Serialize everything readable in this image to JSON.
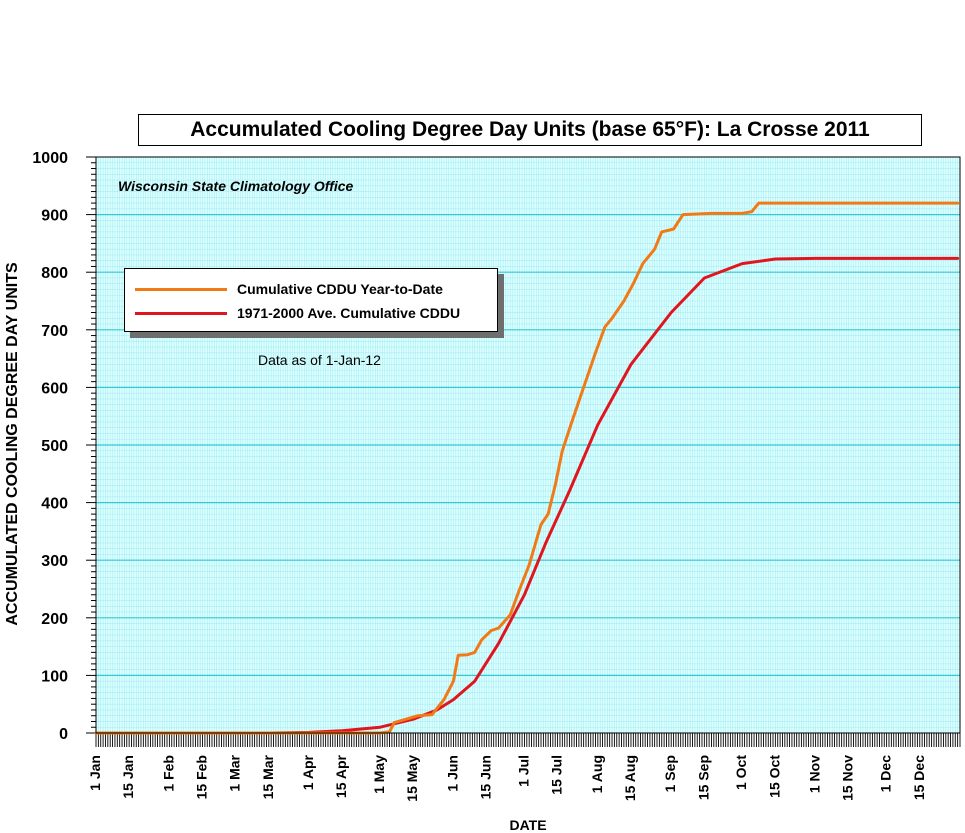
{
  "chart_data": {
    "type": "line",
    "title": "Accumulated Cooling Degree Day Units (base 65°F): La Crosse 2011",
    "xlabel": "DATE",
    "ylabel": "ACCUMULATED COOLING DEGREE DAY UNITS",
    "credit": "Wisconsin State Climatology Office",
    "note": "Data as of 1-Jan-12",
    "ylim": [
      0,
      1000
    ],
    "yticks": [
      0,
      100,
      200,
      300,
      400,
      500,
      600,
      700,
      800,
      900,
      1000
    ],
    "xticks": [
      "1 Jan",
      "15 Jan",
      "1 Feb",
      "15 Feb",
      "1 Mar",
      "15 Mar",
      "1 Apr",
      "15 Apr",
      "1 May",
      "15 May",
      "1 Jun",
      "15 Jun",
      "1 Jul",
      "15 Jul",
      "1 Aug",
      "15 Aug",
      "1 Sep",
      "15 Sep",
      "1 Oct",
      "15 Oct",
      "1 Nov",
      "15 Nov",
      "1 Dec",
      "15 Dec"
    ],
    "grid": true,
    "legend_position": "upper-left",
    "plot_background": "#dcffff",
    "series": [
      {
        "name": "Cumulative CDDU Year-to-Date",
        "color": "#f07b16",
        "points": [
          [
            "2011-01-01",
            0
          ],
          [
            "2011-04-01",
            0
          ],
          [
            "2011-05-01",
            0
          ],
          [
            "2011-05-05",
            2
          ],
          [
            "2011-05-07",
            18
          ],
          [
            "2011-05-12",
            24
          ],
          [
            "2011-05-17",
            30
          ],
          [
            "2011-05-23",
            32
          ],
          [
            "2011-05-28",
            58
          ],
          [
            "2011-06-01",
            90
          ],
          [
            "2011-06-03",
            135
          ],
          [
            "2011-06-07",
            136
          ],
          [
            "2011-06-10",
            140
          ],
          [
            "2011-06-13",
            162
          ],
          [
            "2011-06-17",
            178
          ],
          [
            "2011-06-20",
            182
          ],
          [
            "2011-06-25",
            205
          ],
          [
            "2011-06-29",
            250
          ],
          [
            "2011-07-03",
            292
          ],
          [
            "2011-07-08",
            362
          ],
          [
            "2011-07-11",
            380
          ],
          [
            "2011-07-14",
            430
          ],
          [
            "2011-07-17",
            490
          ],
          [
            "2011-07-21",
            540
          ],
          [
            "2011-07-26",
            600
          ],
          [
            "2011-07-31",
            660
          ],
          [
            "2011-08-04",
            705
          ],
          [
            "2011-08-07",
            720
          ],
          [
            "2011-08-12",
            750
          ],
          [
            "2011-08-16",
            780
          ],
          [
            "2011-08-20",
            815
          ],
          [
            "2011-08-25",
            840
          ],
          [
            "2011-08-28",
            870
          ],
          [
            "2011-09-02",
            875
          ],
          [
            "2011-09-06",
            900
          ],
          [
            "2011-09-18",
            902
          ],
          [
            "2011-10-01",
            902
          ],
          [
            "2011-10-05",
            905
          ],
          [
            "2011-10-08",
            920
          ],
          [
            "2011-12-31",
            920
          ]
        ]
      },
      {
        "name": "1971-2000 Ave. Cumulative CDDU",
        "color": "#e0161e",
        "points": [
          [
            "2011-01-01",
            0
          ],
          [
            "2011-03-15",
            0
          ],
          [
            "2011-04-01",
            1
          ],
          [
            "2011-04-15",
            4
          ],
          [
            "2011-05-01",
            10
          ],
          [
            "2011-05-15",
            24
          ],
          [
            "2011-05-25",
            40
          ],
          [
            "2011-06-01",
            58
          ],
          [
            "2011-06-10",
            90
          ],
          [
            "2011-06-20",
            155
          ],
          [
            "2011-07-01",
            240
          ],
          [
            "2011-07-10",
            330
          ],
          [
            "2011-07-20",
            420
          ],
          [
            "2011-08-01",
            535
          ],
          [
            "2011-08-15",
            640
          ],
          [
            "2011-09-01",
            730
          ],
          [
            "2011-09-15",
            790
          ],
          [
            "2011-10-01",
            815
          ],
          [
            "2011-10-15",
            823
          ],
          [
            "2011-11-01",
            824
          ],
          [
            "2011-12-31",
            824
          ]
        ]
      }
    ]
  }
}
